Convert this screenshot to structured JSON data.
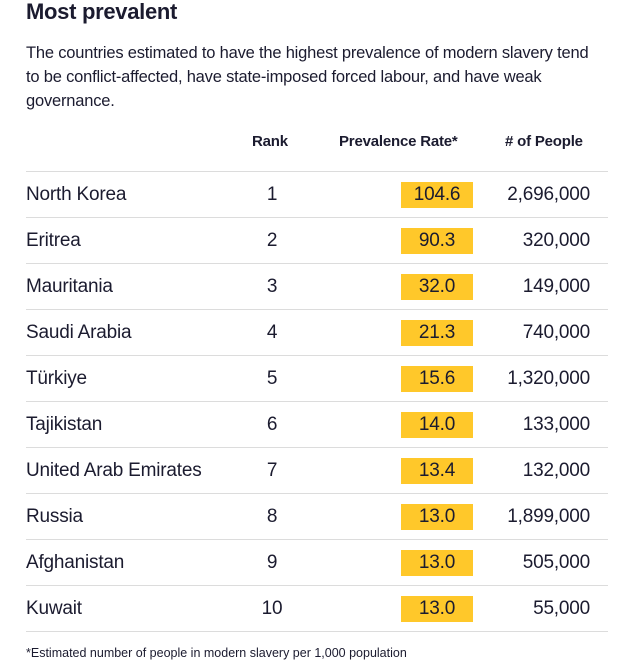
{
  "title": "Most prevalent",
  "description": "The countries estimated to have the highest prevalence of modern slavery tend to be conflict-affected, have state-imposed forced labour, and have weak governance.",
  "headers": {
    "rank": "Rank",
    "rate": "Prevalence Rate*",
    "people": "# of People"
  },
  "highlight_color": "#ffc82a",
  "rows": [
    {
      "country": "North Korea",
      "rank": "1",
      "rate": "104.6",
      "people": "2,696,000"
    },
    {
      "country": "Eritrea",
      "rank": "2",
      "rate": "90.3",
      "people": "320,000"
    },
    {
      "country": "Mauritania",
      "rank": "3",
      "rate": "32.0",
      "people": "149,000"
    },
    {
      "country": "Saudi Arabia",
      "rank": "4",
      "rate": "21.3",
      "people": "740,000"
    },
    {
      "country": "Türkiye",
      "rank": "5",
      "rate": "15.6",
      "people": "1,320,000"
    },
    {
      "country": "Tajikistan",
      "rank": "6",
      "rate": "14.0",
      "people": "133,000"
    },
    {
      "country": "United Arab Emirates",
      "rank": "7",
      "rate": "13.4",
      "people": "132,000"
    },
    {
      "country": "Russia",
      "rank": "8",
      "rate": "13.0",
      "people": "1,899,000"
    },
    {
      "country": "Afghanistan",
      "rank": "9",
      "rate": "13.0",
      "people": "505,000"
    },
    {
      "country": "Kuwait",
      "rank": "10",
      "rate": "13.0",
      "people": "55,000"
    }
  ],
  "footnote": "*Estimated number of people in modern slavery per 1,000 population"
}
